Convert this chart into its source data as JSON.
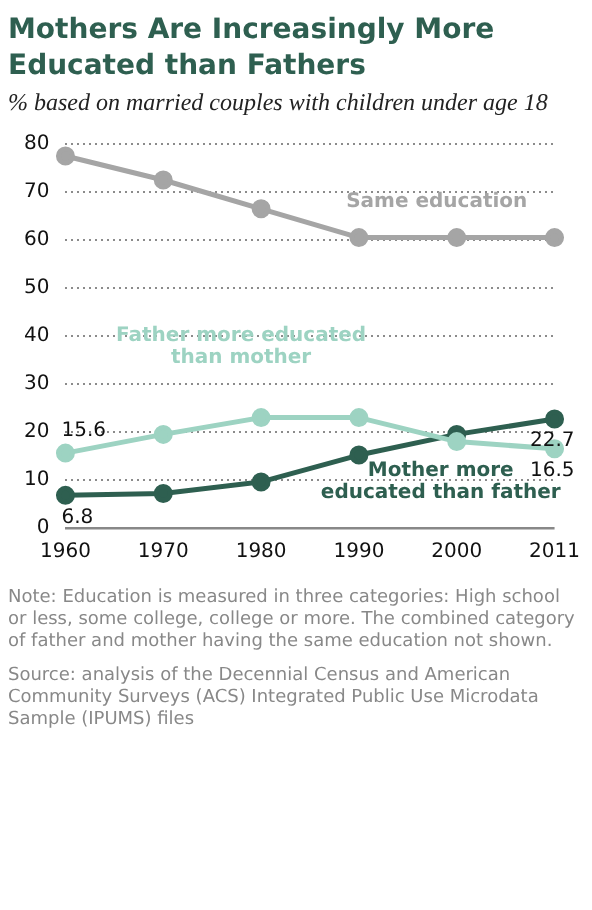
{
  "chart_data": {
    "type": "line",
    "title": "Mothers Are Increasingly More Educated than Fathers",
    "subtitle": "% based on married couples with children under age 18",
    "categories": [
      "1960",
      "1970",
      "1980",
      "1990",
      "2000",
      "2011"
    ],
    "series": [
      {
        "name": "Same education",
        "color": "#a5a5a5",
        "values": [
          77.5,
          72.5,
          66.5,
          60.5,
          60.5,
          60.5
        ]
      },
      {
        "name": "Father more educated than mother",
        "color": "#9dd3c2",
        "values": [
          15.6,
          19.5,
          23,
          23,
          18,
          16.5
        ],
        "value_labels": [
          "15.6",
          null,
          null,
          null,
          null,
          "16.5"
        ]
      },
      {
        "name": "Mother more educated than father",
        "color": "#2e5f50",
        "values": [
          6.8,
          7.2,
          9.6,
          15.2,
          19.5,
          22.7
        ],
        "value_labels": [
          "6.8",
          null,
          null,
          null,
          null,
          "22.7"
        ]
      }
    ],
    "ylim": [
      0,
      80
    ],
    "yticks": [
      0,
      10,
      20,
      30,
      40,
      50,
      60,
      70,
      80
    ],
    "grid": "y",
    "legend": false,
    "marker": "circle",
    "line_style": "solid",
    "annotations": [
      "Note: Education is measured in three categories: High school or less, some college, college or more. The combined category of father and mother having the same education not shown.",
      "Source: analysis of the Decennial Census and American Community Surveys (ACS) Integrated Public Use Microdata Sample (IPUMS) files"
    ]
  }
}
